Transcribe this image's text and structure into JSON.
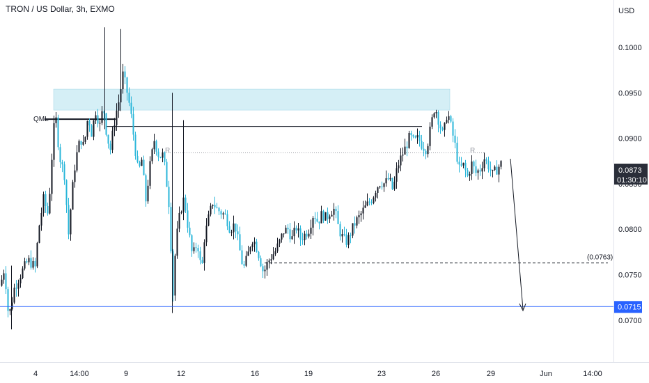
{
  "symbol_title": "TRON / US Dollar, 3h, EXMO",
  "colors": {
    "up": "#131722",
    "down": "#29b6d9",
    "zone_fill": "#d5eff6",
    "blue_line": "#2962ff",
    "current_tag": "#2a2e39"
  },
  "chart_data": {
    "type": "candlestick",
    "title": "TRON / US Dollar, 3h, EXMO",
    "currency_label": "USD",
    "ylim": [
      0.0654,
      0.1052
    ],
    "y_ticks": [
      "0.1000",
      "0.0950",
      "0.0900",
      "0.0850",
      "0.0800",
      "0.0750",
      "0.0700"
    ],
    "x_ticks": [
      "4",
      "14:00",
      "9",
      "12",
      "16",
      "19",
      "23",
      "26",
      "29",
      "Jun",
      "14:00"
    ],
    "current_price": "0.0873",
    "countdown": "01:30:10",
    "support_level": "0.0715",
    "target_label": "(0.0763)",
    "target_level": 0.0763,
    "annotations": {
      "qml": "QML",
      "r_left": "R",
      "r_right": "R"
    },
    "supply_zone": [
      0.0931,
      0.0954
    ],
    "neckline": 0.0913,
    "qml_level": 0.0921,
    "resistance_dotted": 0.0884,
    "price_path": [
      [
        0,
        0.0738
      ],
      [
        6,
        0.0758
      ],
      [
        12,
        0.0702
      ],
      [
        20,
        0.0735
      ],
      [
        30,
        0.0752
      ],
      [
        40,
        0.0766
      ],
      [
        50,
        0.0758
      ],
      [
        55,
        0.08
      ],
      [
        62,
        0.0833
      ],
      [
        68,
        0.0818
      ],
      [
        72,
        0.085
      ],
      [
        76,
        0.0908
      ],
      [
        80,
        0.092
      ],
      [
        85,
        0.088
      ],
      [
        92,
        0.086
      ],
      [
        98,
        0.0795
      ],
      [
        103,
        0.084
      ],
      [
        108,
        0.0876
      ],
      [
        115,
        0.09
      ],
      [
        120,
        0.089
      ],
      [
        126,
        0.0925
      ],
      [
        131,
        0.0906
      ],
      [
        137,
        0.093
      ],
      [
        143,
        0.0914
      ],
      [
        148,
        0.0936
      ],
      [
        153,
        0.0902
      ],
      [
        158,
        0.0888
      ],
      [
        165,
        0.0924
      ],
      [
        170,
        0.094
      ],
      [
        176,
        0.097
      ],
      [
        181,
        0.0955
      ],
      [
        187,
        0.093
      ],
      [
        193,
        0.0892
      ],
      [
        198,
        0.0862
      ],
      [
        203,
        0.0876
      ],
      [
        209,
        0.0832
      ],
      [
        215,
        0.087
      ],
      [
        221,
        0.0898
      ],
      [
        228,
        0.088
      ],
      [
        234,
        0.0882
      ],
      [
        239,
        0.085
      ],
      [
        244,
        0.0815
      ],
      [
        247,
        0.0715
      ],
      [
        252,
        0.0785
      ],
      [
        258,
        0.0818
      ],
      [
        264,
        0.0835
      ],
      [
        270,
        0.08
      ],
      [
        276,
        0.077
      ],
      [
        283,
        0.0786
      ],
      [
        289,
        0.0752
      ],
      [
        293,
        0.079
      ],
      [
        299,
        0.0812
      ],
      [
        305,
        0.083
      ],
      [
        311,
        0.0822
      ],
      [
        318,
        0.0818
      ],
      [
        324,
        0.0814
      ],
      [
        330,
        0.08
      ],
      [
        337,
        0.0806
      ],
      [
        343,
        0.078
      ],
      [
        349,
        0.0756
      ],
      [
        355,
        0.077
      ],
      [
        361,
        0.079
      ],
      [
        366,
        0.0785
      ],
      [
        372,
        0.077
      ],
      [
        378,
        0.0752
      ],
      [
        383,
        0.0762
      ],
      [
        389,
        0.077
      ],
      [
        395,
        0.0776
      ],
      [
        401,
        0.0786
      ],
      [
        407,
        0.0798
      ],
      [
        413,
        0.08
      ],
      [
        419,
        0.079
      ],
      [
        425,
        0.0802
      ],
      [
        431,
        0.079
      ],
      [
        437,
        0.0794
      ],
      [
        443,
        0.08
      ],
      [
        450,
        0.0818
      ],
      [
        456,
        0.0808
      ],
      [
        462,
        0.0817
      ],
      [
        468,
        0.0812
      ],
      [
        474,
        0.082
      ],
      [
        480,
        0.0822
      ],
      [
        486,
        0.08
      ],
      [
        492,
        0.079
      ],
      [
        498,
        0.0786
      ],
      [
        504,
        0.0798
      ],
      [
        510,
        0.0808
      ],
      [
        516,
        0.0814
      ],
      [
        522,
        0.0822
      ],
      [
        528,
        0.0828
      ],
      [
        534,
        0.0834
      ],
      [
        540,
        0.0846
      ],
      [
        546,
        0.0852
      ],
      [
        552,
        0.085
      ],
      [
        558,
        0.0856
      ],
      [
        564,
        0.0842
      ],
      [
        570,
        0.0868
      ],
      [
        576,
        0.088
      ],
      [
        582,
        0.089
      ],
      [
        588,
        0.0902
      ],
      [
        594,
        0.0896
      ],
      [
        600,
        0.09
      ],
      [
        606,
        0.0892
      ],
      [
        612,
        0.0888
      ],
      [
        618,
        0.0912
      ],
      [
        624,
        0.0936
      ],
      [
        630,
        0.0918
      ],
      [
        636,
        0.0902
      ],
      [
        642,
        0.093
      ],
      [
        648,
        0.091
      ],
      [
        653,
        0.0892
      ],
      [
        659,
        0.0866
      ],
      [
        665,
        0.087
      ],
      [
        671,
        0.0858
      ],
      [
        677,
        0.0872
      ],
      [
        683,
        0.0862
      ],
      [
        689,
        0.0866
      ],
      [
        695,
        0.0878
      ],
      [
        701,
        0.087
      ],
      [
        707,
        0.086
      ],
      [
        713,
        0.0866
      ],
      [
        719,
        0.0872
      ]
    ]
  }
}
